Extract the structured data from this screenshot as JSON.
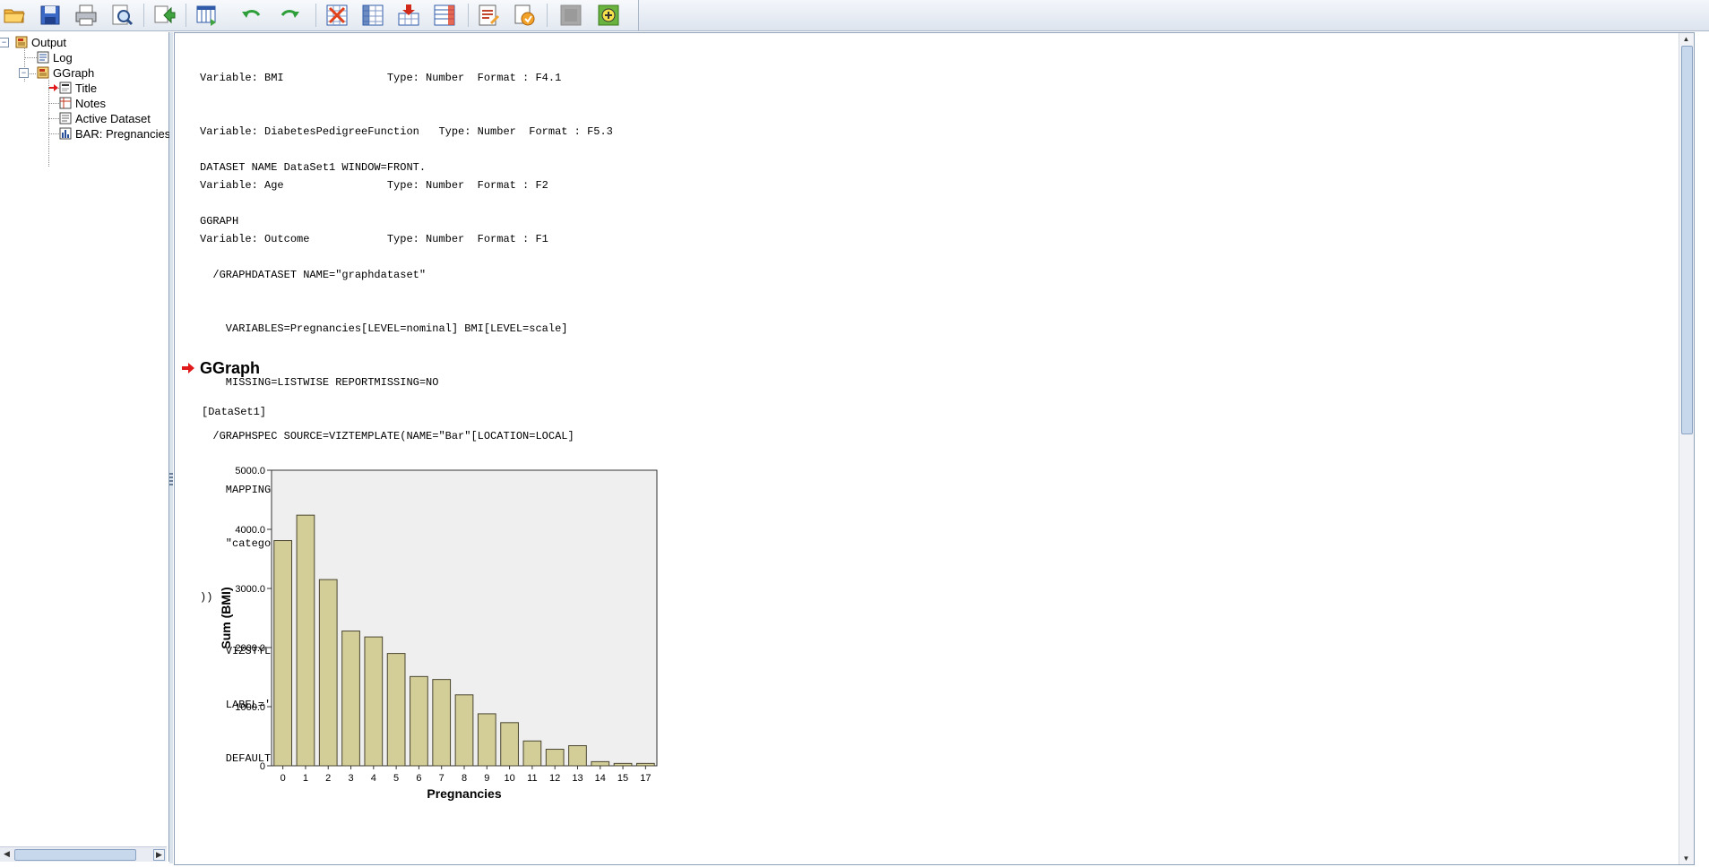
{
  "toolbar": {
    "icons": [
      "open-folder",
      "save",
      "print",
      "print-preview",
      "export",
      "goto-data",
      "insert-variable",
      "undo",
      "redo",
      "goto-case",
      "goto-variable",
      "insert-cases",
      "insert-variables",
      "split-file",
      "value-labels",
      "select-cases",
      "disabled-button",
      "add-ons"
    ]
  },
  "nav": {
    "items": [
      {
        "label": "Output",
        "icon": "output-book-icon",
        "expander": "−"
      },
      {
        "label": "Log",
        "icon": "log-icon"
      },
      {
        "label": "GGraph",
        "icon": "ggraph-book-icon",
        "expander": "−"
      },
      {
        "label": "Title",
        "icon": "title-icon"
      },
      {
        "label": "Notes",
        "icon": "notes-icon"
      },
      {
        "label": "Active Dataset",
        "icon": "dataset-icon"
      },
      {
        "label": "BAR: Pregnancies",
        "icon": "bar-chart-icon"
      }
    ]
  },
  "syntax": {
    "variable_lines": [
      "Variable: BMI                Type: Number  Format : F4.1",
      "Variable: DiabetesPedigreeFunction   Type: Number  Format : F5.3",
      "Variable: Age                Type: Number  Format : F2",
      "Variable: Outcome            Type: Number  Format : F1"
    ],
    "command_lines": [
      "DATASET NAME DataSet1 WINDOW=FRONT.",
      "GGRAPH",
      "  /GRAPHDATASET NAME=\"graphdataset\"",
      "    VARIABLES=Pregnancies[LEVEL=nominal] BMI[LEVEL=scale]",
      "    MISSING=LISTWISE REPORTMISSING=NO",
      "  /GRAPHSPEC SOURCE=VIZTEMPLATE(NAME=\"Bar\"[LOCATION=LOCAL]",
      "    MAPPING( \"values\"=\"BMI\"[DATASET=\"graphdataset\"]",
      "    \"categories\"=\"Pregnancies\"[DATASET=\"graphdataset\"] \"Summary\"=\"sum\"",
      "))",
      "    VIZSTYLESHEET=\"Traditional\"[LOCATION=LOCAL]",
      "    LABEL='BAR: Pregnancies-BMI'",
      "    DEFAULTTEMPLATE=NO."
    ]
  },
  "output": {
    "heading": "GGraph",
    "dataset_tag": "[DataSet1]"
  },
  "chart_data": {
    "type": "bar",
    "categories": [
      "0",
      "1",
      "2",
      "3",
      "4",
      "5",
      "6",
      "7",
      "8",
      "9",
      "10",
      "11",
      "12",
      "13",
      "14",
      "15",
      "17"
    ],
    "values": [
      3810,
      4240,
      3150,
      2280,
      2180,
      1900,
      1510,
      1460,
      1200,
      880,
      730,
      420,
      280,
      340,
      70,
      40,
      40
    ],
    "xlabel": "Pregnancies",
    "ylabel": "Sum (BMI)",
    "yticks": [
      "0",
      "1000.0",
      "2000.0",
      "3000.0",
      "4000.0",
      "5000.0"
    ],
    "ylim": [
      0,
      5000
    ],
    "grid": false,
    "colors": {
      "bar_fill": "#d3cd98",
      "bar_stroke": "#4a4630",
      "plot_bg": "#efefef"
    }
  }
}
